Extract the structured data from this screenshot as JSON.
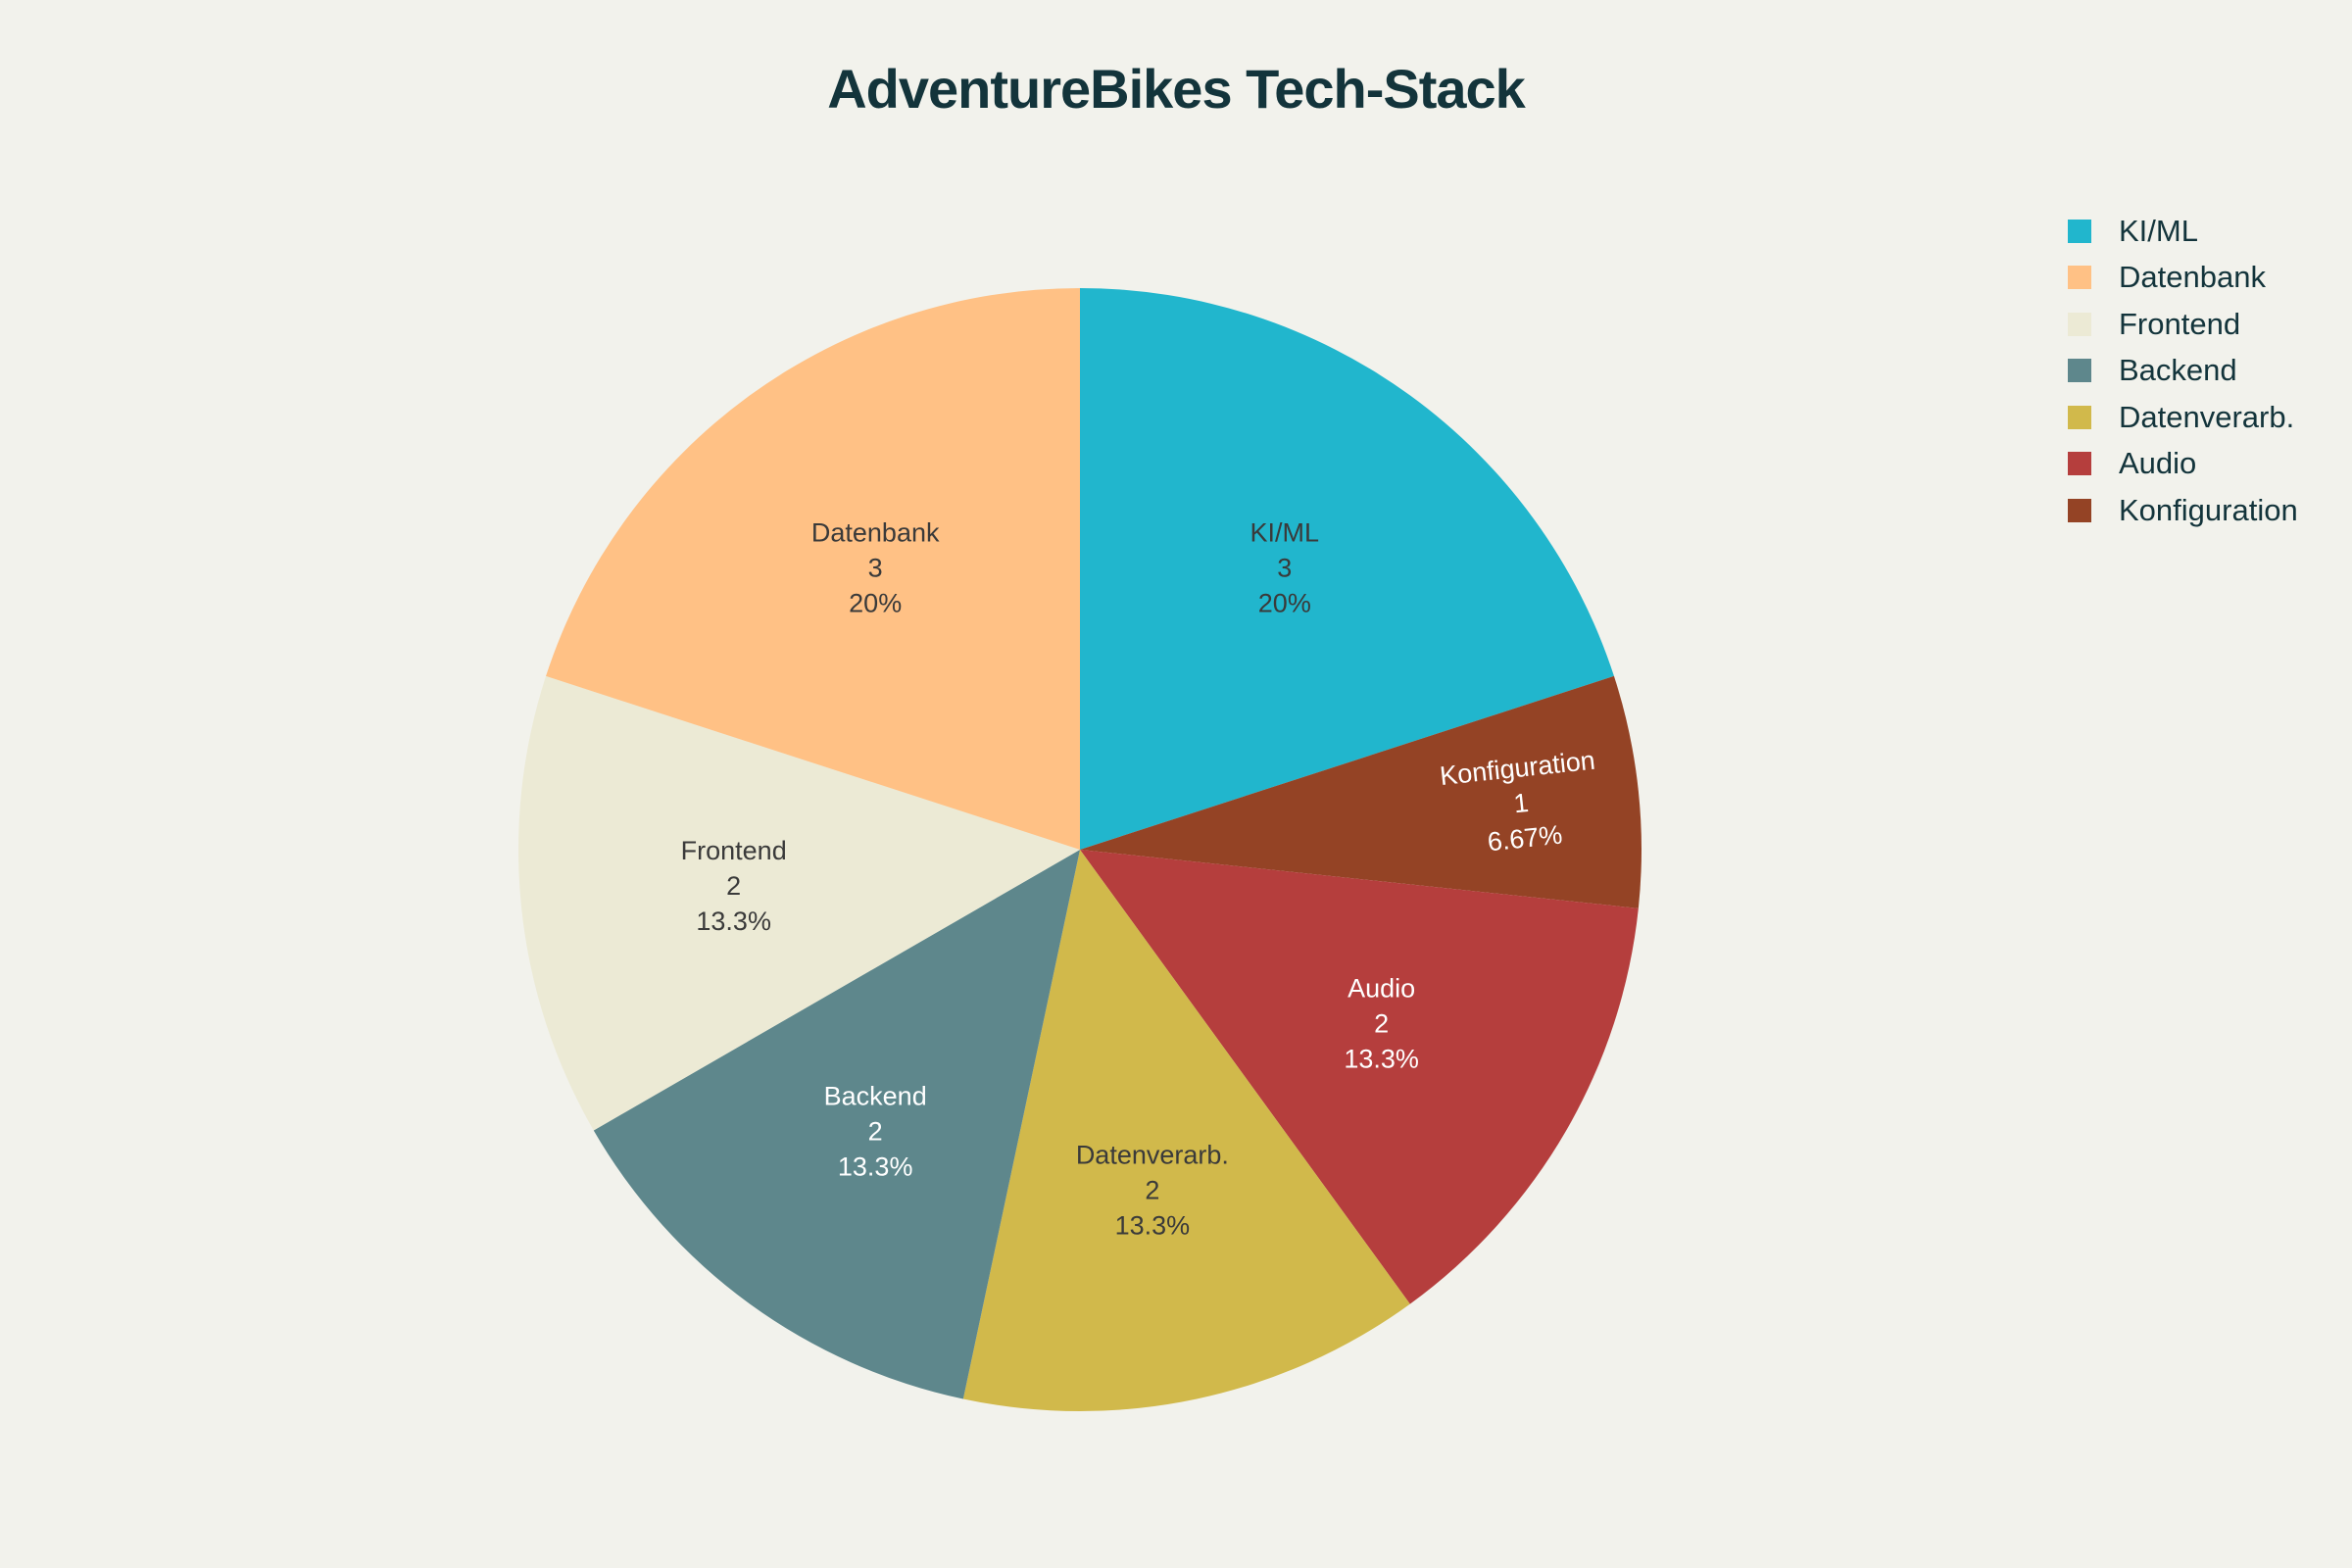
{
  "chart_data": {
    "type": "pie",
    "title": "AdventureBikes Tech-Stack",
    "legend_position": "top-right",
    "slices": [
      {
        "label": "KI/ML",
        "value": 3,
        "percent": "20%",
        "color": "#21b6cd",
        "text_color": "#3a3a3a"
      },
      {
        "label": "Konfiguration",
        "value": 1,
        "percent": "6.67%",
        "color": "#944325",
        "text_color": "#ffffff"
      },
      {
        "label": "Audio",
        "value": 2,
        "percent": "13.3%",
        "color": "#b53e3d",
        "text_color": "#ffffff"
      },
      {
        "label": "Datenverarb.",
        "value": 2,
        "percent": "13.3%",
        "color": "#d1b94b",
        "text_color": "#3a3a3a"
      },
      {
        "label": "Backend",
        "value": 2,
        "percent": "13.3%",
        "color": "#5e878c",
        "text_color": "#ffffff"
      },
      {
        "label": "Frontend",
        "value": 2,
        "percent": "13.3%",
        "color": "#ecead5",
        "text_color": "#3a3a3a"
      },
      {
        "label": "Datenbank",
        "value": 3,
        "percent": "20%",
        "color": "#ffc185",
        "text_color": "#3a3a3a"
      }
    ],
    "legend": [
      "KI/ML",
      "Datenbank",
      "Frontend",
      "Backend",
      "Datenverarb.",
      "Audio",
      "Konfiguration"
    ]
  }
}
